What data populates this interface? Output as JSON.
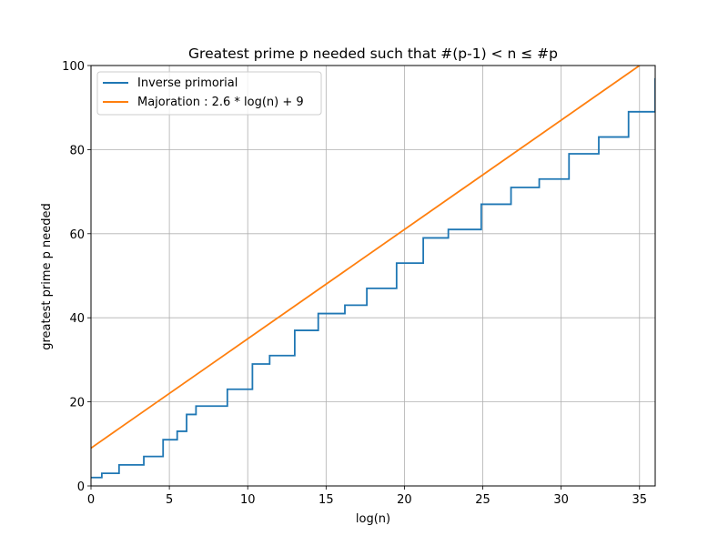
{
  "chart_data": {
    "type": "line",
    "title": "Greatest prime p needed such that #(p-1) < n ≤ #p",
    "xlabel": "log(n)",
    "ylabel": "greatest prime p needed",
    "xlim": [
      0,
      36
    ],
    "ylim": [
      0,
      100
    ],
    "xticks": [
      0,
      5,
      10,
      15,
      20,
      25,
      30,
      35
    ],
    "yticks": [
      0,
      20,
      40,
      60,
      80,
      100
    ],
    "grid": true,
    "legend_position": "top-left",
    "series": [
      {
        "name": "Inverse primorial",
        "style": "step-post",
        "color": "#1f77b4",
        "x": [
          0.0,
          0.69,
          1.79,
          3.37,
          4.6,
          5.5,
          6.1,
          6.7,
          8.7,
          10.3,
          11.4,
          13.0,
          14.5,
          16.2,
          17.6,
          19.5,
          21.2,
          22.8,
          24.9,
          26.8,
          28.6,
          30.5,
          32.4,
          34.3,
          36.0
        ],
        "y": [
          2,
          3,
          5,
          7,
          11,
          13,
          17,
          19,
          23,
          29,
          31,
          37,
          41,
          43,
          47,
          53,
          59,
          61,
          67,
          71,
          73,
          79,
          83,
          89,
          97
        ]
      },
      {
        "name": "Majoration : 2.6 * log(n) + 9",
        "style": "line",
        "color": "#ff7f0e",
        "x": [
          0,
          35
        ],
        "y": [
          9,
          100
        ]
      }
    ]
  }
}
